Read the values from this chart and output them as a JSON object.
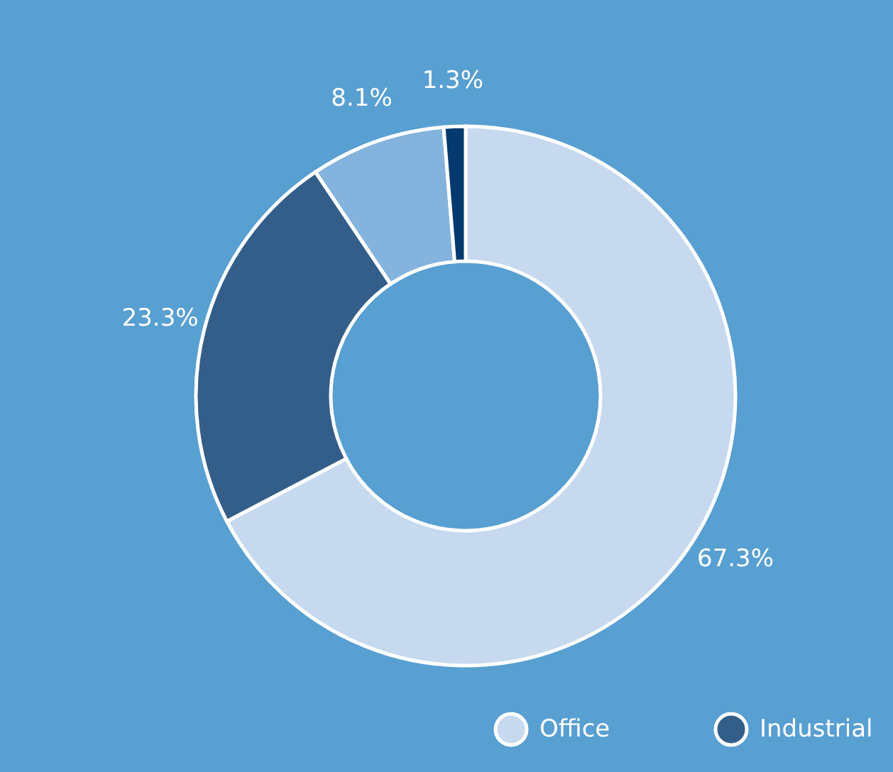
{
  "chart_data": {
    "type": "donut",
    "categories": [
      "Office",
      "Industrial",
      null,
      null
    ],
    "values": [
      67.3,
      23.3,
      8.1,
      1.3
    ],
    "colors": [
      "#c6d9ef",
      "#335e8a",
      "#84b3dd",
      "#043a6e"
    ],
    "value_labels": [
      "67.3%",
      "23.3%",
      "8.1%",
      "1.3%"
    ],
    "legend": "bottom right"
  }
}
